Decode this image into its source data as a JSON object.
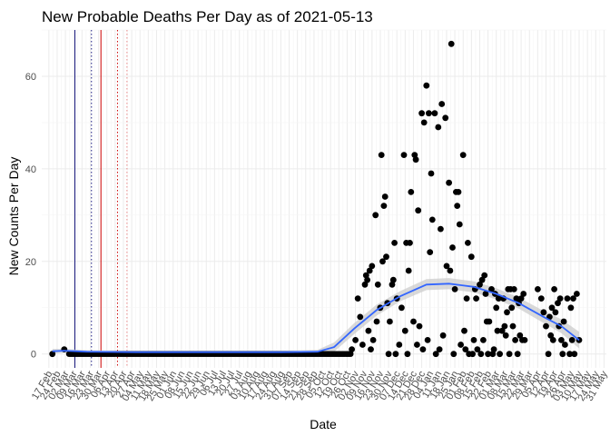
{
  "chart_data": {
    "type": "scatter",
    "title": "New Probable Deaths Per Day as of 2021-05-13",
    "xlabel": "Date",
    "ylabel": "New Counts Per Day",
    "x_start": "2020-02-17",
    "x_end": "2021-05-31",
    "xlim": [
      "2020-02-11",
      "2021-06-02"
    ],
    "ylim": [
      -3,
      70
    ],
    "y_ticks": [
      0,
      20,
      40,
      60
    ],
    "x_tick_labels": [
      "17 Feb",
      "24 Feb",
      "02 Mar",
      "09 Mar",
      "16 Mar",
      "23 Mar",
      "30 Mar",
      "06 Apr",
      "13 Apr",
      "20 Apr",
      "27 Apr",
      "04 May",
      "11 May",
      "18 May",
      "25 May",
      "01 Jun",
      "08 Jun",
      "15 Jun",
      "22 Jun",
      "29 Jun",
      "06 Jul",
      "13 Jul",
      "20 Jul",
      "27 Jul",
      "03 Aug",
      "10 Aug",
      "17 Aug",
      "24 Aug",
      "31 Aug",
      "07 Sep",
      "14 Sep",
      "21 Sep",
      "28 Sep",
      "05 Oct",
      "12 Oct",
      "19 Oct",
      "26 Oct",
      "02 Nov",
      "09 Nov",
      "16 Nov",
      "23 Nov",
      "30 Nov",
      "07 Dec",
      "14 Dec",
      "21 Dec",
      "28 Dec",
      "04 Jan",
      "11 Jan",
      "18 Jan",
      "25 Jan",
      "01 Feb",
      "08 Feb",
      "15 Feb",
      "22 Feb",
      "01 Mar",
      "08 Mar",
      "15 Mar",
      "22 Mar",
      "29 Mar",
      "05 Apr",
      "12 Apr",
      "19 Apr",
      "26 Apr",
      "03 May",
      "10 May",
      "17 May",
      "24 May",
      "31 May"
    ],
    "grid": true,
    "vlines": [
      {
        "date": "2020-03-10",
        "color": "#1a1a80",
        "style": "solid"
      },
      {
        "date": "2020-03-24",
        "color": "#1a1a80",
        "style": "dotted"
      },
      {
        "date": "2020-04-01",
        "color": "#cc0000",
        "style": "solid"
      },
      {
        "date": "2020-04-15",
        "color": "#cc0000",
        "style": "dotted"
      },
      {
        "date": "2020-04-23",
        "color": "#e88888",
        "style": "dotted"
      }
    ],
    "points": [
      {
        "x": "2020-02-20",
        "y": 0
      },
      {
        "x": "2020-03-01",
        "y": 1
      },
      {
        "x": "2020-10-30",
        "y": 1
      },
      {
        "x": "2020-11-02",
        "y": 3
      },
      {
        "x": "2020-11-04",
        "y": 12
      },
      {
        "x": "2020-11-06",
        "y": 8
      },
      {
        "x": "2020-11-08",
        "y": 2
      },
      {
        "x": "2020-11-10",
        "y": 15
      },
      {
        "x": "2020-11-11",
        "y": 17
      },
      {
        "x": "2020-11-12",
        "y": 16
      },
      {
        "x": "2020-11-13",
        "y": 5
      },
      {
        "x": "2020-11-14",
        "y": 18
      },
      {
        "x": "2020-11-15",
        "y": 1
      },
      {
        "x": "2020-11-16",
        "y": 19
      },
      {
        "x": "2020-11-17",
        "y": 3
      },
      {
        "x": "2020-11-19",
        "y": 30
      },
      {
        "x": "2020-11-20",
        "y": 7
      },
      {
        "x": "2020-11-21",
        "y": 15
      },
      {
        "x": "2020-11-23",
        "y": 10
      },
      {
        "x": "2020-11-24",
        "y": 43
      },
      {
        "x": "2020-11-25",
        "y": 20
      },
      {
        "x": "2020-11-26",
        "y": 32
      },
      {
        "x": "2020-11-27",
        "y": 34
      },
      {
        "x": "2020-11-28",
        "y": 21
      },
      {
        "x": "2020-11-29",
        "y": 11
      },
      {
        "x": "2020-11-30",
        "y": 0
      },
      {
        "x": "2020-12-01",
        "y": 7
      },
      {
        "x": "2020-12-03",
        "y": 15
      },
      {
        "x": "2020-12-04",
        "y": 16
      },
      {
        "x": "2020-12-05",
        "y": 24
      },
      {
        "x": "2020-12-06",
        "y": 0
      },
      {
        "x": "2020-12-07",
        "y": 12
      },
      {
        "x": "2020-12-09",
        "y": 2
      },
      {
        "x": "2020-12-11",
        "y": 10
      },
      {
        "x": "2020-12-13",
        "y": 43
      },
      {
        "x": "2020-12-14",
        "y": 5
      },
      {
        "x": "2020-12-15",
        "y": 24
      },
      {
        "x": "2020-12-16",
        "y": 0
      },
      {
        "x": "2020-12-17",
        "y": 18
      },
      {
        "x": "2020-12-18",
        "y": 24
      },
      {
        "x": "2020-12-19",
        "y": 35
      },
      {
        "x": "2020-12-21",
        "y": 7
      },
      {
        "x": "2020-12-22",
        "y": 43
      },
      {
        "x": "2020-12-23",
        "y": 42
      },
      {
        "x": "2020-12-24",
        "y": 2
      },
      {
        "x": "2020-12-25",
        "y": 31
      },
      {
        "x": "2020-12-26",
        "y": 6
      },
      {
        "x": "2020-12-28",
        "y": 52
      },
      {
        "x": "2020-12-29",
        "y": 1
      },
      {
        "x": "2020-12-30",
        "y": 50
      },
      {
        "x": "2021-01-01",
        "y": 58
      },
      {
        "x": "2021-01-02",
        "y": 3
      },
      {
        "x": "2021-01-03",
        "y": 52
      },
      {
        "x": "2021-01-04",
        "y": 22
      },
      {
        "x": "2021-01-05",
        "y": 39
      },
      {
        "x": "2021-01-06",
        "y": 29
      },
      {
        "x": "2021-01-08",
        "y": 52
      },
      {
        "x": "2021-01-09",
        "y": 0
      },
      {
        "x": "2021-01-11",
        "y": 49
      },
      {
        "x": "2021-01-12",
        "y": 1
      },
      {
        "x": "2021-01-13",
        "y": 27
      },
      {
        "x": "2021-01-14",
        "y": 54
      },
      {
        "x": "2021-01-15",
        "y": 4
      },
      {
        "x": "2021-01-17",
        "y": 51
      },
      {
        "x": "2021-01-18",
        "y": 19
      },
      {
        "x": "2021-01-20",
        "y": 37
      },
      {
        "x": "2021-01-21",
        "y": 18
      },
      {
        "x": "2021-01-22",
        "y": 67
      },
      {
        "x": "2021-01-23",
        "y": 23
      },
      {
        "x": "2021-01-24",
        "y": 0
      },
      {
        "x": "2021-01-25",
        "y": 14
      },
      {
        "x": "2021-01-26",
        "y": 35
      },
      {
        "x": "2021-01-27",
        "y": 32
      },
      {
        "x": "2021-01-28",
        "y": 35
      },
      {
        "x": "2021-01-29",
        "y": 28
      },
      {
        "x": "2021-01-30",
        "y": 2
      },
      {
        "x": "2021-02-01",
        "y": 43
      },
      {
        "x": "2021-02-02",
        "y": 5
      },
      {
        "x": "2021-02-03",
        "y": 1
      },
      {
        "x": "2021-02-04",
        "y": 12
      },
      {
        "x": "2021-02-05",
        "y": 24
      },
      {
        "x": "2021-02-06",
        "y": 0
      },
      {
        "x": "2021-02-08",
        "y": 21
      },
      {
        "x": "2021-02-09",
        "y": 0
      },
      {
        "x": "2021-02-10",
        "y": 3
      },
      {
        "x": "2021-02-11",
        "y": 14
      },
      {
        "x": "2021-02-12",
        "y": 12
      },
      {
        "x": "2021-02-13",
        "y": 1
      },
      {
        "x": "2021-02-15",
        "y": 15
      },
      {
        "x": "2021-02-16",
        "y": 0
      },
      {
        "x": "2021-02-17",
        "y": 16
      },
      {
        "x": "2021-02-18",
        "y": 3
      },
      {
        "x": "2021-02-19",
        "y": 17
      },
      {
        "x": "2021-02-20",
        "y": 13
      },
      {
        "x": "2021-02-21",
        "y": 7
      },
      {
        "x": "2021-02-22",
        "y": 0
      },
      {
        "x": "2021-02-23",
        "y": 7
      },
      {
        "x": "2021-02-25",
        "y": 14
      },
      {
        "x": "2021-02-26",
        "y": 0
      },
      {
        "x": "2021-02-27",
        "y": 1
      },
      {
        "x": "2021-02-28",
        "y": 13
      },
      {
        "x": "2021-03-01",
        "y": 10
      },
      {
        "x": "2021-03-02",
        "y": 5
      },
      {
        "x": "2021-03-03",
        "y": 12
      },
      {
        "x": "2021-03-04",
        "y": 0
      },
      {
        "x": "2021-03-06",
        "y": 5
      },
      {
        "x": "2021-03-07",
        "y": 12
      },
      {
        "x": "2021-03-08",
        "y": 6
      },
      {
        "x": "2021-03-09",
        "y": 4
      },
      {
        "x": "2021-03-10",
        "y": 9
      },
      {
        "x": "2021-03-11",
        "y": 14
      },
      {
        "x": "2021-03-12",
        "y": 0
      },
      {
        "x": "2021-03-13",
        "y": 14
      },
      {
        "x": "2021-03-14",
        "y": 10
      },
      {
        "x": "2021-03-15",
        "y": 6
      },
      {
        "x": "2021-03-16",
        "y": 14
      },
      {
        "x": "2021-03-17",
        "y": 3
      },
      {
        "x": "2021-03-18",
        "y": 12
      },
      {
        "x": "2021-03-19",
        "y": 0
      },
      {
        "x": "2021-03-20",
        "y": 11
      },
      {
        "x": "2021-03-21",
        "y": 4
      },
      {
        "x": "2021-03-22",
        "y": 12
      },
      {
        "x": "2021-03-23",
        "y": 3
      },
      {
        "x": "2021-03-24",
        "y": 13
      },
      {
        "x": "2021-03-25",
        "y": 3
      },
      {
        "x": "2021-04-05",
        "y": 14
      },
      {
        "x": "2021-04-08",
        "y": 12
      },
      {
        "x": "2021-04-10",
        "y": 9
      },
      {
        "x": "2021-04-12",
        "y": 6
      },
      {
        "x": "2021-04-14",
        "y": 0
      },
      {
        "x": "2021-04-15",
        "y": 8
      },
      {
        "x": "2021-04-16",
        "y": 4
      },
      {
        "x": "2021-04-17",
        "y": 10
      },
      {
        "x": "2021-04-18",
        "y": 3
      },
      {
        "x": "2021-04-19",
        "y": 14
      },
      {
        "x": "2021-04-20",
        "y": 9
      },
      {
        "x": "2021-04-22",
        "y": 11
      },
      {
        "x": "2021-04-23",
        "y": 6
      },
      {
        "x": "2021-04-24",
        "y": 12
      },
      {
        "x": "2021-04-25",
        "y": 3
      },
      {
        "x": "2021-04-26",
        "y": 0
      },
      {
        "x": "2021-04-27",
        "y": 7
      },
      {
        "x": "2021-04-28",
        "y": 2
      },
      {
        "x": "2021-04-30",
        "y": 12
      },
      {
        "x": "2021-05-02",
        "y": 0
      },
      {
        "x": "2021-05-03",
        "y": 10
      },
      {
        "x": "2021-05-04",
        "y": 3
      },
      {
        "x": "2021-05-05",
        "y": 12
      },
      {
        "x": "2021-05-06",
        "y": 0
      },
      {
        "x": "2021-05-08",
        "y": 13
      },
      {
        "x": "2021-05-10",
        "y": 3
      }
    ],
    "smooth": {
      "color": "#3366ff",
      "band_color": "#cccccc",
      "x": [
        "2020-02-20",
        "2020-03-01",
        "2020-03-20",
        "2020-05-01",
        "2020-07-01",
        "2020-09-01",
        "2020-10-01",
        "2020-10-15",
        "2020-11-01",
        "2020-11-20",
        "2020-12-10",
        "2021-01-01",
        "2021-01-20",
        "2021-02-10",
        "2021-03-01",
        "2021-03-20",
        "2021-04-10",
        "2021-04-25",
        "2021-05-10"
      ],
      "y": [
        0.6,
        0.7,
        0.5,
        0.4,
        0.4,
        0.4,
        0.5,
        1.5,
        5.5,
        9.5,
        12.5,
        15,
        15.2,
        14.5,
        13,
        11,
        8,
        6,
        3
      ],
      "band": [
        0.5,
        0.4,
        0.3,
        0.3,
        0.3,
        0.3,
        0.4,
        1.0,
        1.2,
        1.2,
        1.1,
        1.2,
        1.2,
        1.2,
        1.2,
        1.2,
        1.3,
        1.5,
        1.8
      ]
    }
  }
}
